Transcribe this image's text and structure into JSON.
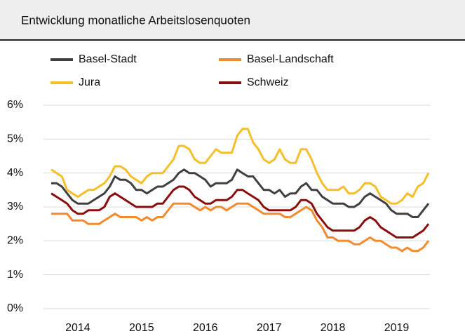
{
  "chart_data": {
    "type": "line",
    "title": "Entwicklung monatliche Arbeitslosenquoten",
    "categories": [
      null,
      null,
      null,
      null,
      null,
      "2014",
      null,
      null,
      null,
      null,
      null,
      null,
      null,
      null,
      null,
      null,
      null,
      "2015",
      null,
      null,
      null,
      null,
      null,
      null,
      null,
      null,
      null,
      null,
      null,
      "2016",
      null,
      null,
      null,
      null,
      null,
      null,
      null,
      null,
      null,
      null,
      null,
      "2017",
      null,
      null,
      null,
      null,
      null,
      null,
      null,
      null,
      null,
      null,
      null,
      "2018",
      null,
      null,
      null,
      null,
      null,
      null,
      null,
      null,
      null,
      null,
      null,
      "2019",
      null,
      null,
      null,
      null,
      null,
      null
    ],
    "series": [
      {
        "name": "Basel-Stadt",
        "color": "#404040",
        "values": [
          3.7,
          3.7,
          3.6,
          3.4,
          3.2,
          3.1,
          3.1,
          3.1,
          3.2,
          3.3,
          3.4,
          3.6,
          3.9,
          3.8,
          3.8,
          3.7,
          3.5,
          3.5,
          3.4,
          3.5,
          3.6,
          3.6,
          3.7,
          3.8,
          4.0,
          4.1,
          4.0,
          4.0,
          3.9,
          3.8,
          3.6,
          3.7,
          3.7,
          3.7,
          3.8,
          4.1,
          4.0,
          3.9,
          3.9,
          3.7,
          3.5,
          3.5,
          3.4,
          3.5,
          3.3,
          3.4,
          3.4,
          3.6,
          3.7,
          3.5,
          3.5,
          3.3,
          3.2,
          3.1,
          3.1,
          3.1,
          3.0,
          3.0,
          3.1,
          3.3,
          3.4,
          3.3,
          3.2,
          3.1,
          2.9,
          2.8,
          2.8,
          2.8,
          2.7,
          2.7,
          2.9,
          3.1
        ]
      },
      {
        "name": "Basel-Landschaft",
        "color": "#f28a2e",
        "values": [
          2.8,
          2.8,
          2.8,
          2.8,
          2.6,
          2.6,
          2.6,
          2.5,
          2.5,
          2.5,
          2.6,
          2.7,
          2.8,
          2.7,
          2.7,
          2.7,
          2.7,
          2.6,
          2.7,
          2.6,
          2.7,
          2.7,
          2.9,
          3.1,
          3.1,
          3.1,
          3.1,
          3.0,
          2.9,
          3.0,
          2.9,
          3.0,
          3.0,
          2.9,
          3.0,
          3.1,
          3.1,
          3.1,
          3.0,
          2.9,
          2.8,
          2.8,
          2.8,
          2.8,
          2.7,
          2.7,
          2.8,
          2.9,
          3.0,
          2.9,
          2.6,
          2.4,
          2.1,
          2.1,
          2.0,
          2.0,
          2.0,
          1.9,
          1.9,
          2.0,
          2.1,
          2.0,
          2.0,
          1.9,
          1.8,
          1.8,
          1.7,
          1.8,
          1.7,
          1.7,
          1.8,
          2.0
        ]
      },
      {
        "name": "Jura",
        "color": "#f5bf2a",
        "values": [
          4.1,
          4.0,
          3.9,
          3.5,
          3.4,
          3.3,
          3.4,
          3.5,
          3.5,
          3.6,
          3.7,
          3.9,
          4.2,
          4.2,
          4.1,
          3.9,
          3.8,
          3.7,
          3.9,
          4.0,
          4.0,
          4.0,
          4.2,
          4.4,
          4.8,
          4.8,
          4.7,
          4.4,
          4.3,
          4.3,
          4.5,
          4.7,
          4.6,
          4.6,
          4.6,
          5.1,
          5.3,
          5.3,
          4.9,
          4.7,
          4.4,
          4.3,
          4.4,
          4.7,
          4.4,
          4.3,
          4.3,
          4.7,
          4.7,
          4.4,
          4.0,
          3.7,
          3.5,
          3.5,
          3.5,
          3.6,
          3.4,
          3.4,
          3.5,
          3.7,
          3.7,
          3.6,
          3.3,
          3.2,
          3.1,
          3.1,
          3.2,
          3.4,
          3.3,
          3.6,
          3.7,
          4.0
        ]
      },
      {
        "name": "Schweiz",
        "color": "#8b0e0e",
        "values": [
          3.4,
          3.3,
          3.2,
          3.1,
          2.9,
          2.8,
          2.8,
          2.9,
          2.9,
          2.9,
          3.0,
          3.3,
          3.4,
          3.3,
          3.2,
          3.1,
          3.0,
          3.0,
          3.0,
          3.0,
          3.1,
          3.1,
          3.3,
          3.5,
          3.6,
          3.6,
          3.5,
          3.3,
          3.2,
          3.1,
          3.1,
          3.2,
          3.2,
          3.2,
          3.3,
          3.5,
          3.5,
          3.4,
          3.3,
          3.2,
          3.0,
          2.9,
          2.9,
          2.9,
          2.9,
          2.9,
          3.0,
          3.2,
          3.2,
          3.1,
          2.8,
          2.6,
          2.4,
          2.3,
          2.3,
          2.3,
          2.3,
          2.3,
          2.4,
          2.6,
          2.7,
          2.6,
          2.4,
          2.3,
          2.2,
          2.1,
          2.1,
          2.1,
          2.1,
          2.2,
          2.3,
          2.5
        ]
      }
    ],
    "ylim": [
      0,
      6
    ],
    "yticks": [
      {
        "value": 0,
        "label": "0%"
      },
      {
        "value": 1,
        "label": "1%"
      },
      {
        "value": 2,
        "label": "2%"
      },
      {
        "value": 3,
        "label": "3%"
      },
      {
        "value": 4,
        "label": "4%"
      },
      {
        "value": 5,
        "label": "5%"
      },
      {
        "value": 6,
        "label": "6%"
      }
    ],
    "grid": true
  }
}
